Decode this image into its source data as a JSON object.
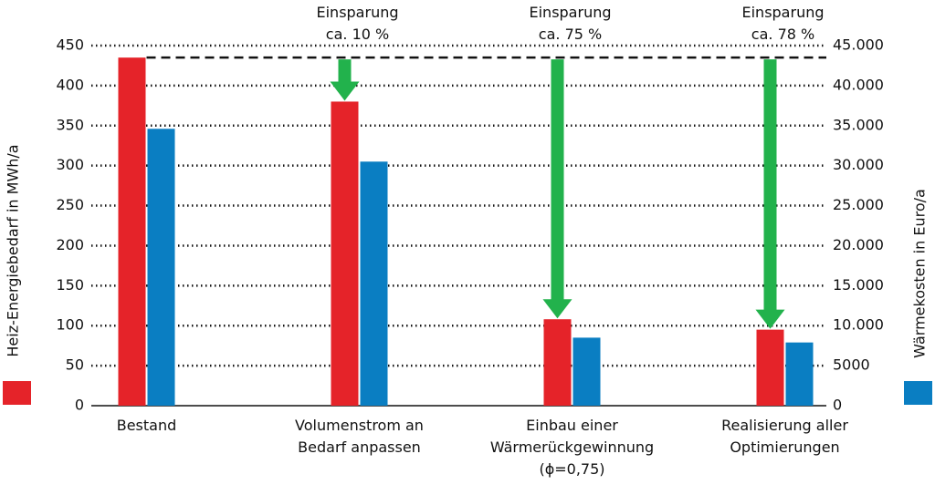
{
  "chart_data": {
    "type": "bar",
    "categories": [
      "Bestand",
      "Volumenstrom an\nBedarf anpassen",
      "Einbau einer\nWärmerückgewinnung\n(ϕ=0,75)",
      "Realisierung aller\nOptimierungen"
    ],
    "series": [
      {
        "color": "#e52329",
        "values": [
          435,
          380,
          108,
          95
        ]
      },
      {
        "color": "#0a7ec2",
        "axis": "y2",
        "values": [
          34600,
          30500,
          8500,
          7900
        ]
      }
    ],
    "ylabel": "Heiz-Energiebedarf in MWh/a",
    "y2label": "Wärmekosten in Euro/a",
    "ylim": [
      0,
      450
    ],
    "yticks": [
      0,
      50,
      100,
      150,
      200,
      250,
      300,
      350,
      400,
      450
    ],
    "y2lim": [
      0,
      45000
    ],
    "y2ticks": [
      0,
      5000,
      {
        "value": 10000,
        "label": "10.000"
      },
      {
        "value": 15000,
        "label": "15.000"
      },
      {
        "value": 20000,
        "label": "20.000"
      },
      {
        "value": 25000,
        "label": "25.000"
      },
      {
        "value": 30000,
        "label": "30.000"
      },
      {
        "value": 35000,
        "label": "35.000"
      },
      {
        "value": 40000,
        "label": "40.000"
      },
      {
        "value": 45000,
        "label": "45.000"
      }
    ],
    "annotations": [
      "Einsparung\nca. 10 %",
      "Einsparung\nca. 75 %",
      "Einsparung\nca. 78 %"
    ],
    "arrow_color": "#22b24c",
    "grid": true
  }
}
